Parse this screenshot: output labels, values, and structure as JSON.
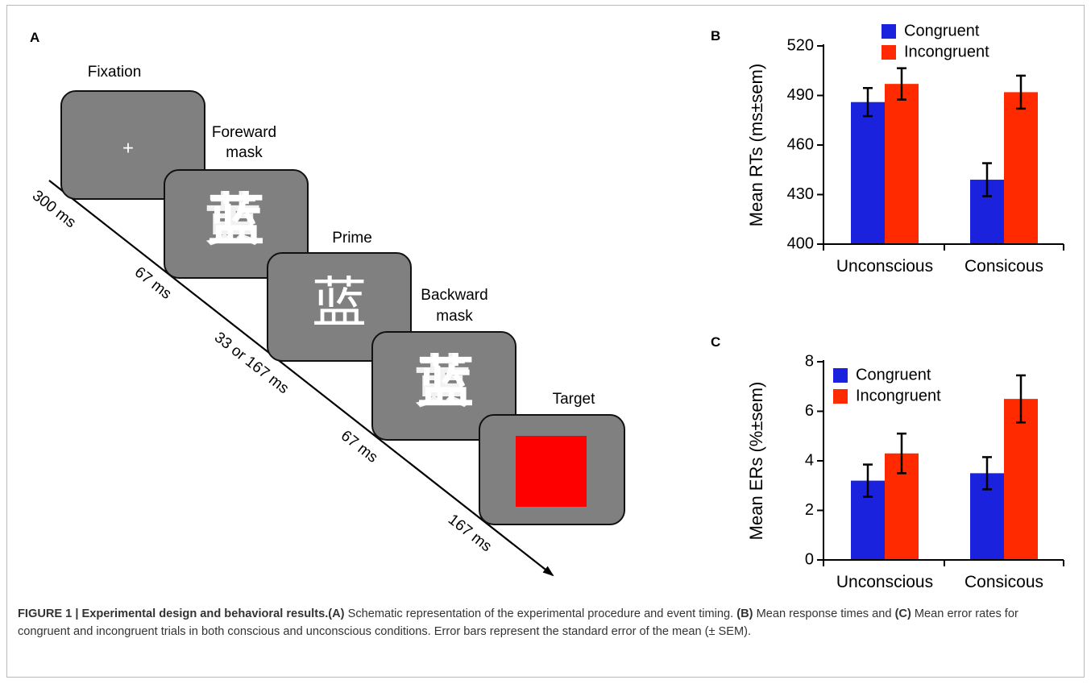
{
  "panels": {
    "a": "A",
    "b": "B",
    "c": "C"
  },
  "procedure": {
    "fixation_label": "Fixation",
    "fixation_symbol": "+",
    "forward_mask_label_1": "Foreward",
    "forward_mask_label_2": "mask",
    "mask_glyph_1": "蓝",
    "mask_glyph_2": "黄",
    "prime_label": "Prime",
    "prime_glyph": "蓝",
    "backward_mask_label_1": "Backward",
    "backward_mask_label_2": "mask",
    "target_label": "Target",
    "target_color": "#ff0000",
    "screen_color": "#808080",
    "durations": [
      "300 ms",
      "67 ms",
      "33 or 167 ms",
      "67 ms",
      "167 ms"
    ]
  },
  "chart_data": [
    {
      "type": "bar",
      "panel": "B",
      "ylabel": "Mean RTs (ms±sem)",
      "ylim": [
        400,
        520
      ],
      "yticks": [
        400,
        430,
        460,
        490,
        520
      ],
      "categories": [
        "Unconscious",
        "Consicous"
      ],
      "series": [
        {
          "name": "Congruent",
          "color": "#1a22dd",
          "values": [
            486,
            439
          ],
          "errors": [
            8.5,
            10
          ]
        },
        {
          "name": "Incongruent",
          "color": "#ff2a00",
          "values": [
            497,
            492
          ],
          "errors": [
            9.5,
            10
          ]
        }
      ],
      "legend": "top-right"
    },
    {
      "type": "bar",
      "panel": "C",
      "ylabel": "Mean ERs (%±sem)",
      "ylim": [
        0,
        8
      ],
      "yticks": [
        0,
        2,
        4,
        6,
        8
      ],
      "categories": [
        "Unconscious",
        "Consicous"
      ],
      "series": [
        {
          "name": "Congruent",
          "color": "#1a22dd",
          "values": [
            3.2,
            3.5
          ],
          "errors": [
            0.65,
            0.65
          ]
        },
        {
          "name": "Incongruent",
          "color": "#ff2a00",
          "values": [
            4.3,
            6.5
          ],
          "errors": [
            0.8,
            0.95
          ]
        }
      ],
      "legend": "top-left"
    }
  ],
  "caption": {
    "label": "FIGURE 1 | Experimental design and behavioral results.",
    "a_tag": "(A)",
    "a_text": " Schematic representation of the experimental procedure and event timing. ",
    "b_tag": "(B)",
    "b_text": " Mean response times and ",
    "c_tag": "(C)",
    "c_text": " Mean error rates for congruent and incongruent trials in both conscious and unconscious conditions. Error bars represent the standard error of the mean (± SEM)."
  }
}
